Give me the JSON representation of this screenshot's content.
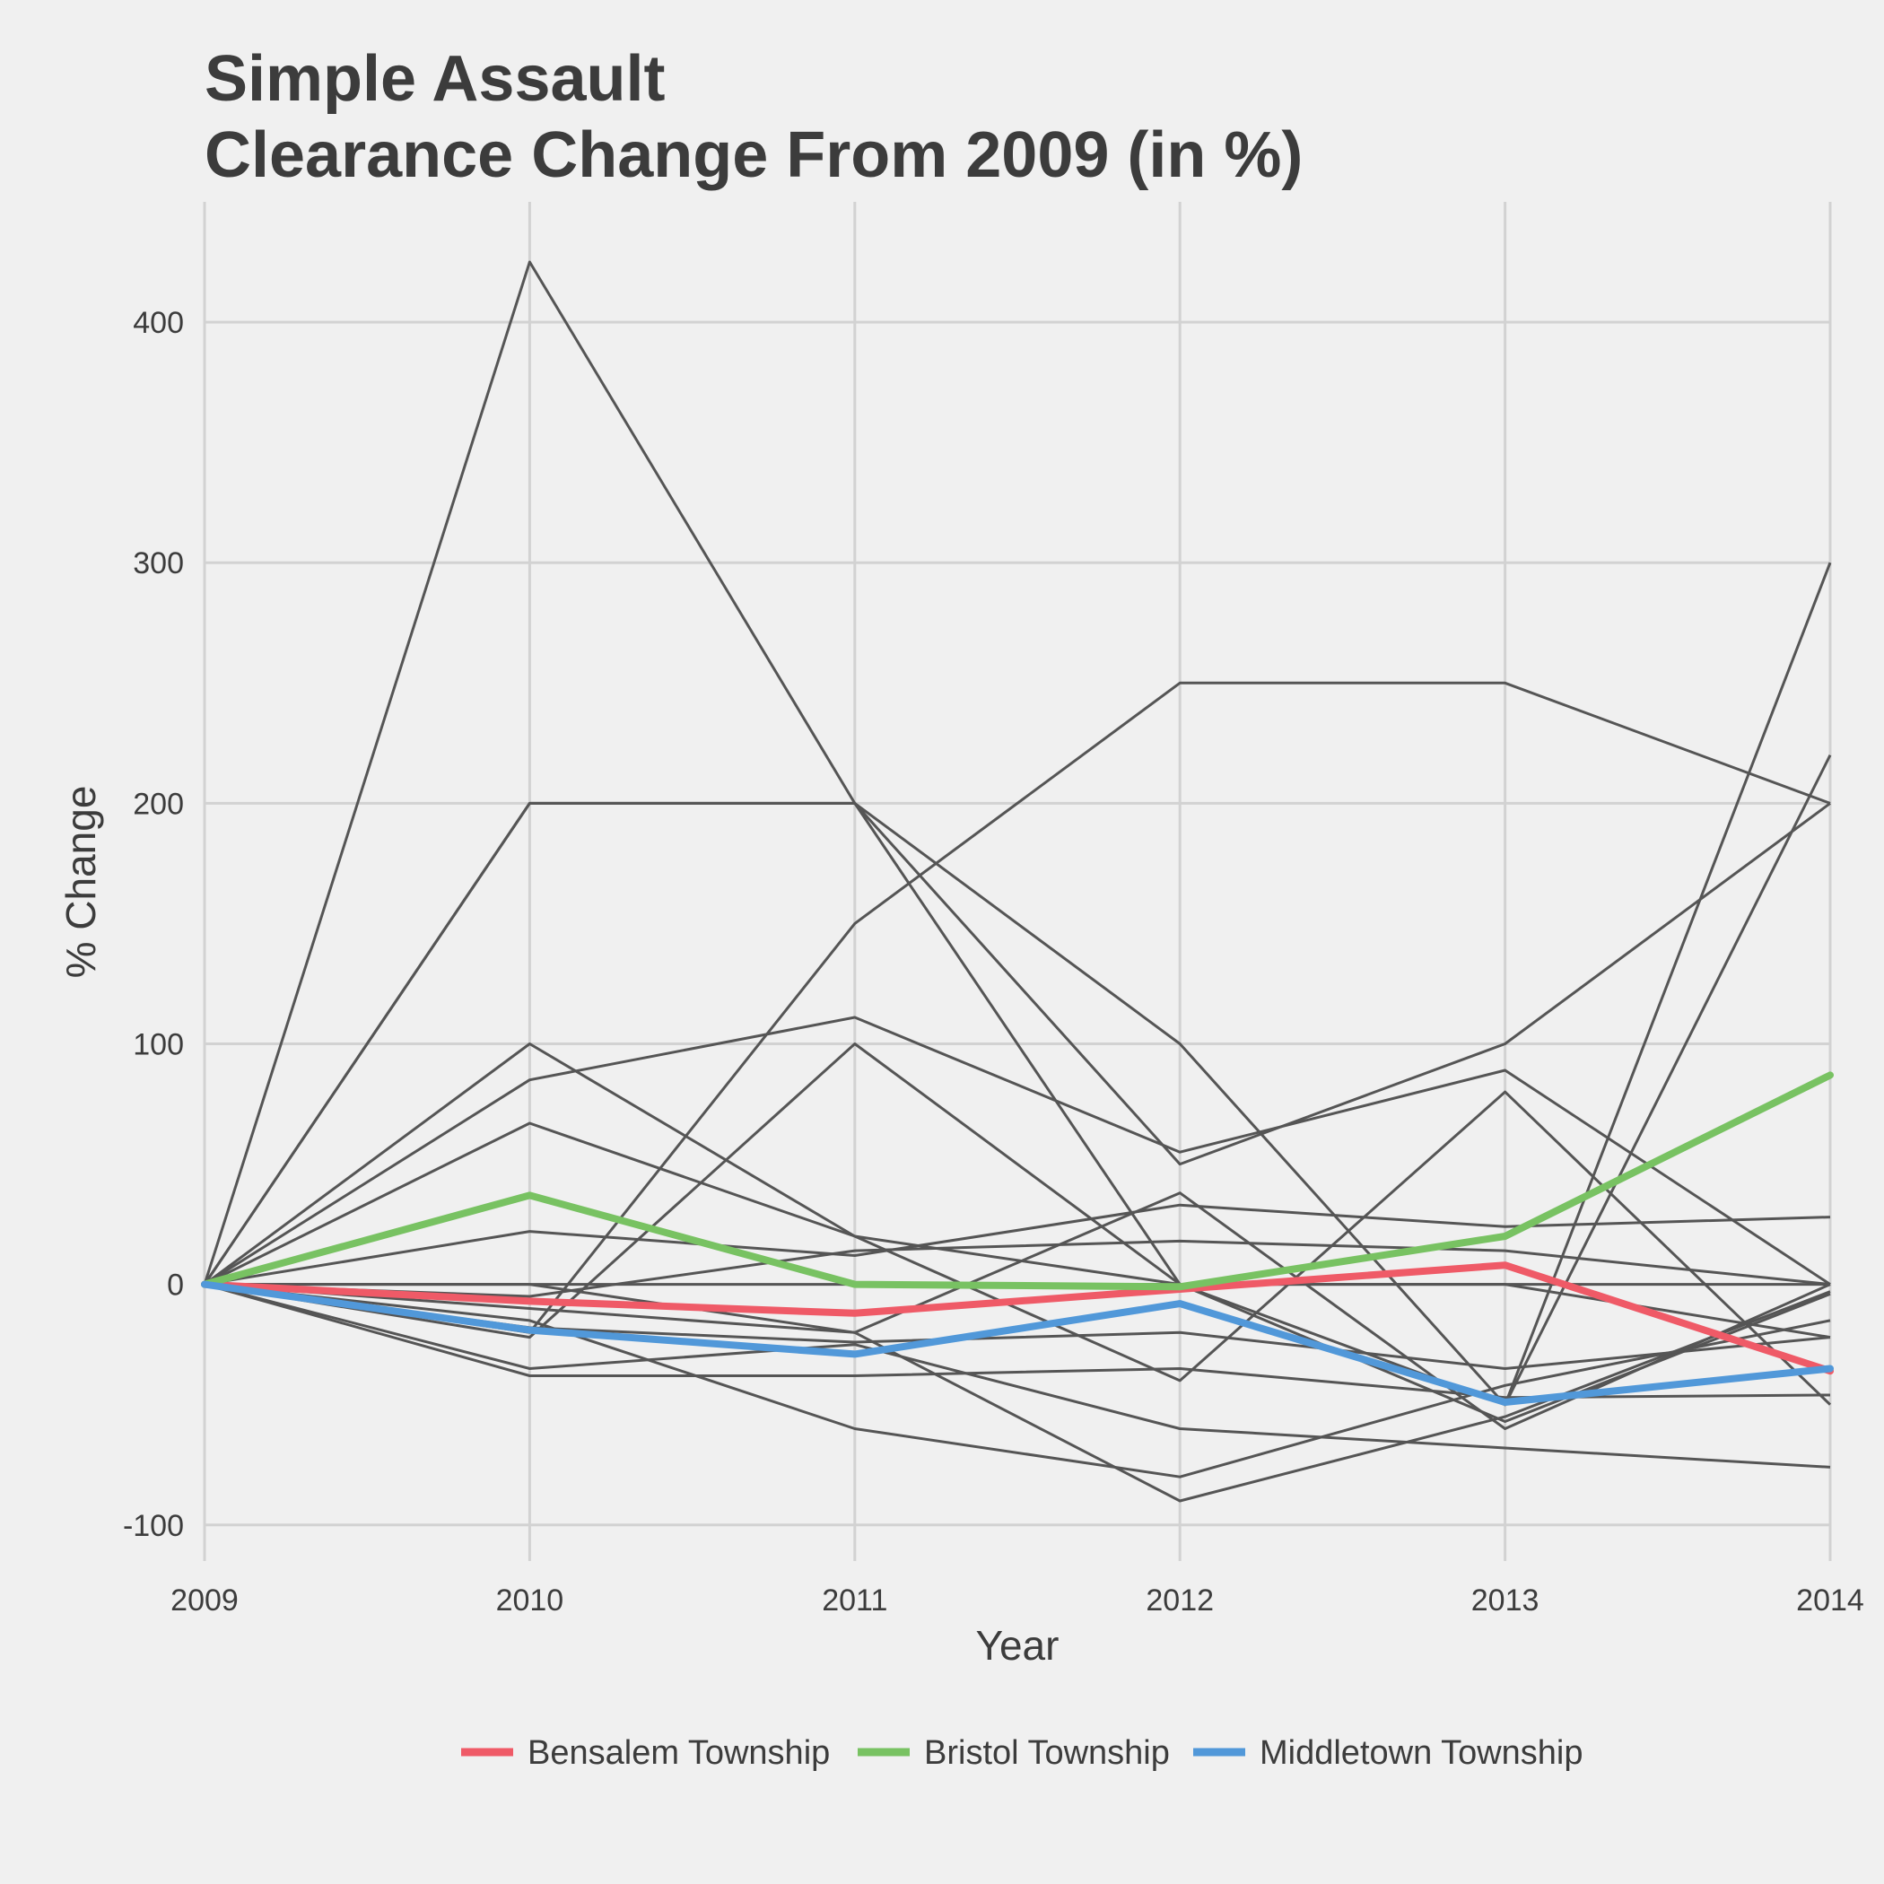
{
  "chart_data": {
    "type": "line",
    "title_lines": [
      "Simple Assault",
      "Clearance Change From 2009 (in %)"
    ],
    "xlabel": "Year",
    "ylabel": "% Change",
    "x": [
      2009,
      2010,
      2011,
      2012,
      2013,
      2014
    ],
    "x_tick_labels": [
      "2009",
      "2010",
      "2011",
      "2012",
      "2013",
      "2014"
    ],
    "xlim": [
      2009,
      2014
    ],
    "ylim": [
      -115,
      450
    ],
    "y_ticks": [
      -100,
      0,
      100,
      200,
      300,
      400
    ],
    "y_tick_labels": [
      "-100",
      "0",
      "100",
      "200",
      "300",
      "400"
    ],
    "grid": true,
    "legend_position": "bottom",
    "background_color": "#f0f0f0",
    "grid_color": "#d2d2d2",
    "background_series_color": "#555555",
    "background_series": [
      {
        "values": [
          0,
          425,
          200,
          0,
          -50,
          300
        ]
      },
      {
        "values": [
          0,
          200,
          200,
          50,
          100,
          200
        ]
      },
      {
        "values": [
          0,
          -20,
          150,
          250,
          250,
          200
        ]
      },
      {
        "values": [
          0,
          200,
          200,
          100,
          -50,
          220
        ]
      },
      {
        "values": [
          0,
          100,
          20,
          -40,
          80,
          -50
        ]
      },
      {
        "values": [
          0,
          85,
          111,
          55,
          89,
          0
        ]
      },
      {
        "values": [
          0,
          67,
          20,
          0,
          0,
          -22
        ]
      },
      {
        "values": [
          0,
          22,
          12,
          33,
          24,
          28
        ]
      },
      {
        "values": [
          0,
          -22,
          100,
          0,
          -57,
          -4
        ]
      },
      {
        "values": [
          0,
          0,
          -20,
          38,
          -60,
          0
        ]
      },
      {
        "values": [
          0,
          -5,
          14,
          18,
          14,
          0
        ]
      },
      {
        "values": [
          0,
          0,
          0,
          0,
          0,
          0
        ]
      },
      {
        "values": [
          0,
          -18,
          -24,
          -20,
          -35,
          -22
        ]
      },
      {
        "values": [
          0,
          -10,
          -20,
          -90,
          -55,
          -3
        ]
      },
      {
        "values": [
          0,
          -38,
          -38,
          -35,
          -47,
          -46
        ]
      },
      {
        "values": [
          0,
          -15,
          -60,
          -80,
          -42,
          -15
        ]
      },
      {
        "values": [
          0,
          -35,
          -25,
          -60,
          -68,
          -76
        ]
      }
    ],
    "series": [
      {
        "name": "Bensalem Township",
        "color": "#ef5a67",
        "values": [
          0,
          -7,
          -12,
          -2,
          8,
          -36
        ]
      },
      {
        "name": "Bristol Township",
        "color": "#78c262",
        "values": [
          0,
          37,
          0,
          -1,
          20,
          87
        ]
      },
      {
        "name": "Middletown Township",
        "color": "#5198d9",
        "values": [
          0,
          -19,
          -29,
          -8,
          -49,
          -35
        ]
      }
    ]
  }
}
